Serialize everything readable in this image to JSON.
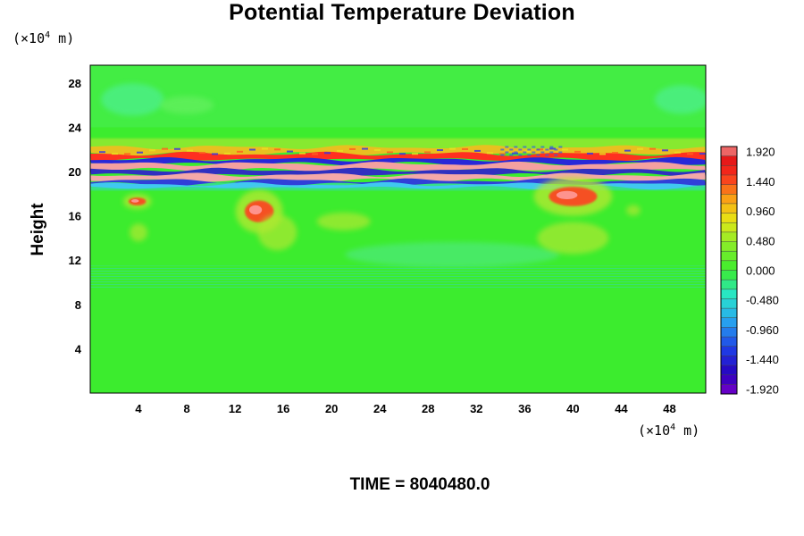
{
  "chart_data": {
    "type": "heatmap",
    "title": "Potential Temperature Deviation",
    "ylabel": "Height",
    "xlabel": "",
    "x_unit_base": "(×10",
    "unit_exp": "4",
    "unit_tail": " m)",
    "x_ticks": [
      4,
      8,
      12,
      16,
      20,
      24,
      28,
      32,
      36,
      40,
      44,
      48
    ],
    "y_ticks": [
      4,
      8,
      12,
      16,
      20,
      24,
      28
    ],
    "xlim": [
      0,
      51
    ],
    "ylim": [
      0,
      29.6
    ],
    "colorbar": {
      "ticks": [
        "1.920",
        "1.440",
        "0.960",
        "0.480",
        "0.000",
        "-0.480",
        "-0.960",
        "-1.440",
        "-1.920"
      ],
      "range": [
        -2.0,
        2.0
      ],
      "levels": 26
    },
    "colors": {
      "background_field": "#3cec2e",
      "positive_peak": "#f08080",
      "negative_peak": "#7a00c8"
    },
    "features": [
      {
        "name": "main layer band",
        "y": [
          19.4,
          21.6
        ],
        "x": [
          0,
          51
        ]
      },
      {
        "name": "warm patch",
        "x": [
          37.5,
          42.5
        ],
        "y": [
          16.5,
          19.0
        ]
      },
      {
        "name": "warm patch",
        "x": [
          12.5,
          15.5
        ],
        "y": [
          15.0,
          17.8
        ]
      },
      {
        "name": "warm patch",
        "x": [
          3.0,
          4.8
        ],
        "y": [
          16.8,
          17.8
        ]
      }
    ]
  },
  "footer": "TIME = 8040480.0"
}
